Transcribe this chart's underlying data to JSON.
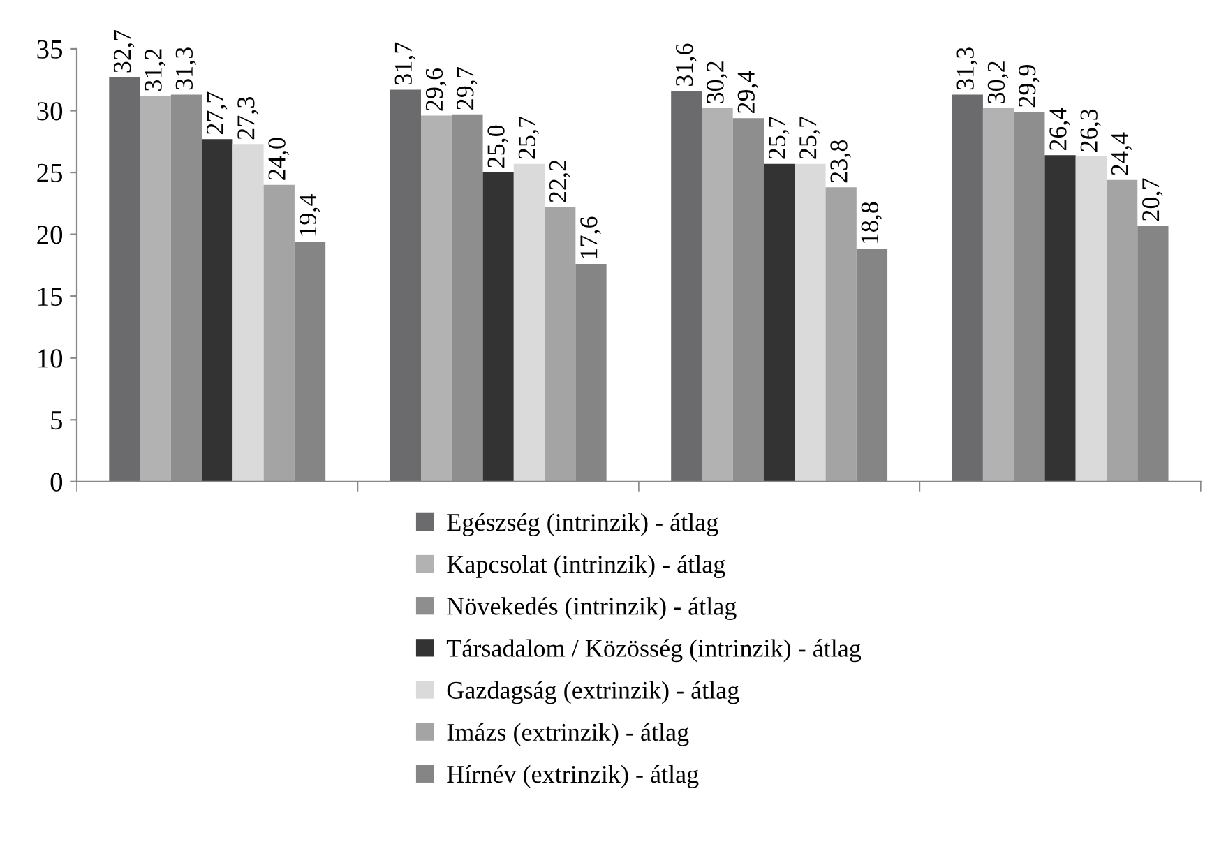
{
  "chart_data": {
    "type": "bar",
    "categories": [
      null,
      null,
      null,
      null
    ],
    "ylim": [
      0,
      35
    ],
    "yticks": [
      0,
      5,
      10,
      15,
      20,
      25,
      30,
      35
    ],
    "grid": false,
    "legend": "bottom",
    "series": [
      {
        "name": "Egészség (intrinzik) - átlag",
        "color": "#6b6b6d",
        "values": [
          32.7,
          31.7,
          31.6,
          31.3
        ],
        "value_labels": [
          "32,7",
          "31,7",
          "31,6",
          "31,3"
        ]
      },
      {
        "name": "Kapcsolat (intrinzik) - átlag",
        "color": "#b2b2b2",
        "values": [
          31.2,
          29.6,
          30.2,
          30.2
        ],
        "value_labels": [
          "31,2",
          "29,6",
          "30,2",
          "30,2"
        ]
      },
      {
        "name": "Növekedés (intrinzik) - átlag",
        "color": "#8e8e8e",
        "values": [
          31.3,
          29.7,
          29.4,
          29.9
        ],
        "value_labels": [
          "31,3",
          "29,7",
          "29,4",
          "29,9"
        ]
      },
      {
        "name": "Társadalom / Közösség (intrinzik) - átlag",
        "color": "#333333",
        "values": [
          27.7,
          25.0,
          25.7,
          26.4
        ],
        "value_labels": [
          "27,7",
          "25,0",
          "25,7",
          "26,4"
        ]
      },
      {
        "name": "Gazdagság (extrinzik) - átlag",
        "color": "#dadada",
        "values": [
          27.3,
          25.7,
          25.7,
          26.3
        ],
        "value_labels": [
          "27,3",
          "25,7",
          "25,7",
          "26,3"
        ]
      },
      {
        "name": "Imázs (extrinzik) - átlag",
        "color": "#a4a4a4",
        "values": [
          24.0,
          22.2,
          23.8,
          24.4
        ],
        "value_labels": [
          "24,0",
          "22,2",
          "23,8",
          "24,4"
        ]
      },
      {
        "name": "Hírnév (extrinzik) - átlag",
        "color": "#858585",
        "values": [
          19.4,
          17.6,
          18.8,
          20.7
        ],
        "value_labels": [
          "19,4",
          "17,6",
          "18,8",
          "20,7"
        ]
      }
    ]
  }
}
